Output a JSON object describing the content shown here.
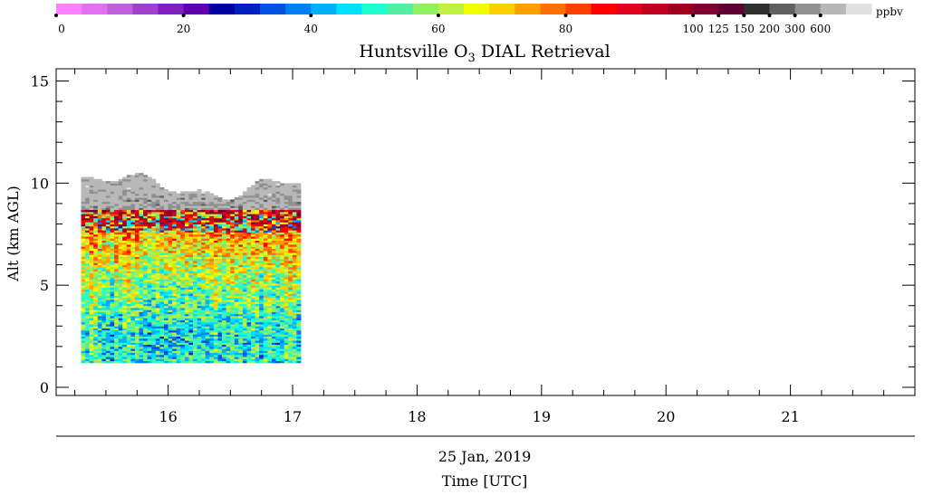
{
  "chart_data": {
    "type": "heatmap",
    "title": "Huntsville O3 DIAL Retrieval",
    "title_parts": {
      "pre": "Huntsville O",
      "sub": "3",
      "post": " DIAL Retrieval"
    },
    "ylabel": "Alt (km AGL)",
    "xlabel": "Time [UTC]",
    "date_label": "25 Jan, 2019",
    "colorbar_unit": "ppbv",
    "x_range": [
      15.1,
      22.0
    ],
    "y_range": [
      -0.4,
      15.6
    ],
    "x_ticks": [
      16,
      17,
      18,
      19,
      20,
      21
    ],
    "x_tick_labels": [
      "16",
      "17",
      "18",
      "19",
      "20",
      "21"
    ],
    "y_ticks": [
      0,
      5,
      10,
      15
    ],
    "y_tick_labels": [
      "0",
      "5",
      "10",
      "15"
    ],
    "colorbar_tick_labels": [
      "0",
      "20",
      "40",
      "60",
      "80",
      "100",
      "125",
      "150",
      "200",
      "300",
      "600"
    ],
    "colorbar_colors": [
      "#ff80ff",
      "#e070f0",
      "#c060e0",
      "#a040d0",
      "#8020c0",
      "#6000b0",
      "#0000a0",
      "#0020c0",
      "#0050e0",
      "#0080f0",
      "#00b0ff",
      "#00e0ff",
      "#20ffd0",
      "#50f0a0",
      "#90f060",
      "#c0f040",
      "#f0ff00",
      "#ffd000",
      "#ffa000",
      "#ff7000",
      "#ff4000",
      "#ff0000",
      "#e00020",
      "#c00020",
      "#a00020",
      "#800030",
      "#600030",
      "#303030",
      "#606060",
      "#909090",
      "#b8b8b8",
      "#e0e0e0"
    ],
    "data_extent": {
      "time_start_utc": 15.3,
      "time_end_utc": 17.05,
      "alt_min_km": 1.2,
      "alt_max_km": 10.4
    },
    "retrieval_profile_mean_ppbv": [
      {
        "alt_km": 1.5,
        "o3_ppbv": 57
      },
      {
        "alt_km": 2.5,
        "o3_ppbv": 55
      },
      {
        "alt_km": 3.5,
        "o3_ppbv": 61
      },
      {
        "alt_km": 4.5,
        "o3_ppbv": 67
      },
      {
        "alt_km": 5.5,
        "o3_ppbv": 72
      },
      {
        "alt_km": 6.5,
        "o3_ppbv": 80
      },
      {
        "alt_km": 7.5,
        "o3_ppbv": 88
      },
      {
        "alt_km": 8.5,
        "o3_ppbv": 115
      },
      {
        "alt_km": 9.5,
        "o3_ppbv": 220
      }
    ],
    "grid": false,
    "legend": "colorbar-top"
  }
}
